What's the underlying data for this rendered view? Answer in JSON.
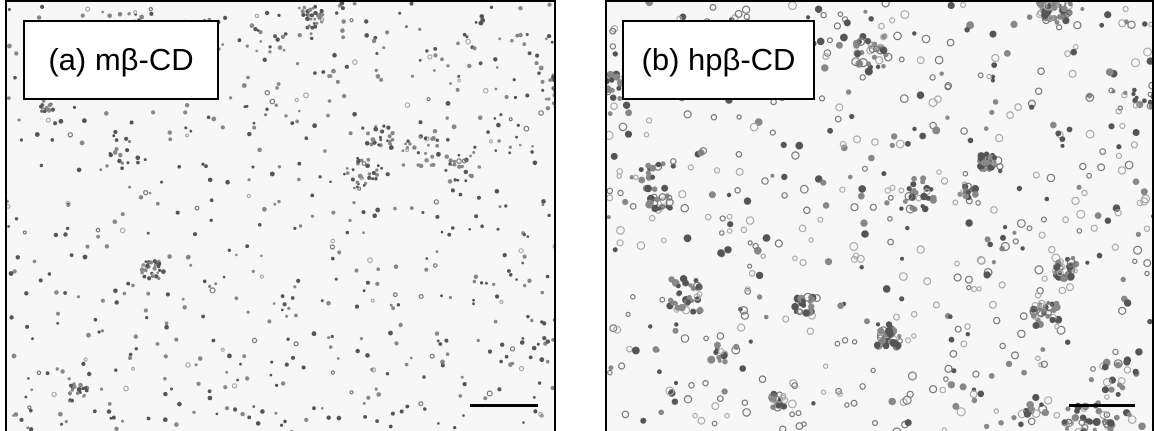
{
  "panels": [
    {
      "label": "(a) mβ-CD"
    },
    {
      "label": "(b) hpβ-CD"
    }
  ]
}
